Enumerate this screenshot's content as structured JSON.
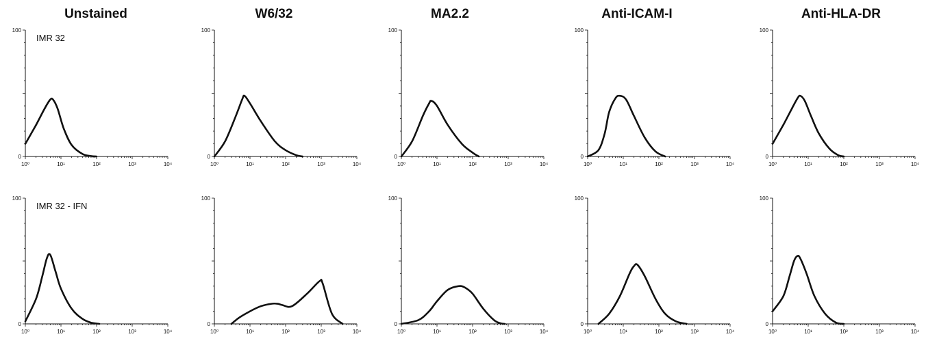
{
  "figure": {
    "columns": [
      "Unstained",
      "W6/32",
      "MA2.2",
      "Anti-ICAM-I",
      "Anti-HLA-DR"
    ],
    "rows": [
      "IMR 32",
      "IMR 32 - IFN"
    ]
  },
  "chart_data": [
    {
      "type": "area",
      "title": "Unstained",
      "row_label": "IMR 32",
      "xscale": "log",
      "xlim": [
        1,
        10000
      ],
      "ylim": [
        0,
        100
      ],
      "x_tick_labels": [
        "10⁰",
        "10¹",
        "10²",
        "10³",
        "10⁴"
      ],
      "y_tick_labels": [
        "0",
        "100"
      ],
      "series": [
        {
          "x": [
            1,
            2,
            3.5,
            5,
            6,
            8,
            12,
            20,
            40,
            70,
            100
          ],
          "y": [
            10,
            25,
            38,
            45,
            45,
            38,
            22,
            9,
            2,
            0.3,
            0
          ]
        }
      ]
    },
    {
      "type": "area",
      "title": "W6/32",
      "row_label": "",
      "xscale": "log",
      "xlim": [
        1,
        10000
      ],
      "ylim": [
        0,
        100
      ],
      "x_tick_labels": [
        "10⁰",
        "10¹",
        "10²",
        "10³",
        "10⁴"
      ],
      "y_tick_labels": [
        "0",
        "100"
      ],
      "series": [
        {
          "x": [
            1,
            2,
            4,
            6,
            7,
            10,
            20,
            50,
            100,
            200,
            300
          ],
          "y": [
            0,
            12,
            32,
            45,
            48,
            42,
            28,
            12,
            5,
            1,
            0
          ]
        }
      ]
    },
    {
      "type": "area",
      "title": "MA2.2",
      "row_label": "",
      "xscale": "log",
      "xlim": [
        1,
        10000
      ],
      "ylim": [
        0,
        100
      ],
      "x_tick_labels": [
        "10⁰",
        "10¹",
        "10²",
        "10³",
        "10⁴"
      ],
      "y_tick_labels": [
        "0",
        "100"
      ],
      "series": [
        {
          "x": [
            1,
            2,
            4,
            6,
            7,
            10,
            20,
            50,
            100,
            150
          ],
          "y": [
            0,
            12,
            32,
            42,
            44,
            40,
            25,
            10,
            3,
            0
          ]
        }
      ]
    },
    {
      "type": "area",
      "title": "Anti-ICAM-I",
      "row_label": "",
      "xscale": "log",
      "xlim": [
        1,
        10000
      ],
      "ylim": [
        0,
        100
      ],
      "x_tick_labels": [
        "10⁰",
        "10¹",
        "10²",
        "10³",
        "10⁴"
      ],
      "y_tick_labels": [
        "0",
        "100"
      ],
      "series": [
        {
          "x": [
            1,
            2,
            3,
            4,
            6,
            8,
            12,
            20,
            40,
            80,
            150
          ],
          "y": [
            0,
            5,
            18,
            35,
            46,
            48,
            45,
            32,
            15,
            4,
            0
          ]
        }
      ]
    },
    {
      "type": "area",
      "title": "Anti-HLA-DR",
      "row_label": "",
      "xscale": "log",
      "xlim": [
        1,
        10000
      ],
      "ylim": [
        0,
        100
      ],
      "x_tick_labels": [
        "10⁰",
        "10¹",
        "10²",
        "10³",
        "10⁴"
      ],
      "y_tick_labels": [
        "0",
        "100"
      ],
      "series": [
        {
          "x": [
            1,
            2,
            3.5,
            5,
            6,
            8,
            12,
            20,
            40,
            70,
            100
          ],
          "y": [
            10,
            25,
            38,
            46,
            48,
            44,
            32,
            18,
            6,
            1,
            0
          ]
        }
      ]
    },
    {
      "type": "area",
      "title": "",
      "row_label": "IMR 32 - IFN",
      "xscale": "log",
      "xlim": [
        1,
        10000
      ],
      "ylim": [
        0,
        100
      ],
      "x_tick_labels": [
        "10⁰",
        "10¹",
        "10²",
        "10³",
        "10⁴"
      ],
      "y_tick_labels": [
        "0",
        "100"
      ],
      "series": [
        {
          "x": [
            1,
            2,
            3,
            4,
            5,
            7,
            10,
            20,
            40,
            70,
            120
          ],
          "y": [
            2,
            20,
            38,
            52,
            55,
            42,
            28,
            12,
            4,
            1,
            0
          ]
        }
      ]
    },
    {
      "type": "area",
      "title": "",
      "row_label": "",
      "xscale": "log",
      "xlim": [
        1,
        10000
      ],
      "ylim": [
        0,
        100
      ],
      "x_tick_labels": [
        "10⁰",
        "10¹",
        "10²",
        "10³",
        "10⁴"
      ],
      "y_tick_labels": [
        "0",
        "100"
      ],
      "series": [
        {
          "x": [
            3,
            5,
            10,
            20,
            40,
            60,
            80,
            150,
            400,
            900,
            1100,
            2000,
            4000
          ],
          "y": [
            0,
            5,
            10,
            14,
            16,
            16,
            15,
            14,
            24,
            34,
            32,
            8,
            0
          ]
        }
      ]
    },
    {
      "type": "area",
      "title": "",
      "row_label": "",
      "xscale": "log",
      "xlim": [
        1,
        10000
      ],
      "ylim": [
        0,
        100
      ],
      "x_tick_labels": [
        "10⁰",
        "10¹",
        "10²",
        "10³",
        "10⁴"
      ],
      "y_tick_labels": [
        "0",
        "100"
      ],
      "series": [
        {
          "x": [
            1,
            3,
            6,
            10,
            20,
            40,
            60,
            100,
            200,
            400,
            600,
            800
          ],
          "y": [
            0,
            3,
            10,
            18,
            27,
            30,
            29,
            24,
            12,
            3,
            0.5,
            0
          ]
        }
      ]
    },
    {
      "type": "area",
      "title": "",
      "row_label": "",
      "xscale": "log",
      "xlim": [
        1,
        10000
      ],
      "ylim": [
        0,
        100
      ],
      "x_tick_labels": [
        "10⁰",
        "10¹",
        "10²",
        "10³",
        "10⁴"
      ],
      "y_tick_labels": [
        "0",
        "100"
      ],
      "series": [
        {
          "x": [
            2,
            4,
            8,
            15,
            20,
            25,
            40,
            80,
            150,
            300,
            600
          ],
          "y": [
            0,
            8,
            22,
            40,
            46,
            47,
            38,
            20,
            8,
            2,
            0
          ]
        }
      ]
    },
    {
      "type": "area",
      "title": "",
      "row_label": "",
      "xscale": "log",
      "xlim": [
        1,
        10000
      ],
      "ylim": [
        0,
        100
      ],
      "x_tick_labels": [
        "10⁰",
        "10¹",
        "10²",
        "10³",
        "10⁴"
      ],
      "y_tick_labels": [
        "0",
        "100"
      ],
      "series": [
        {
          "x": [
            1,
            2,
            3,
            4,
            5,
            6,
            9,
            15,
            30,
            60,
            100
          ],
          "y": [
            10,
            22,
            38,
            50,
            54,
            52,
            40,
            22,
            8,
            1,
            0
          ]
        }
      ]
    }
  ]
}
